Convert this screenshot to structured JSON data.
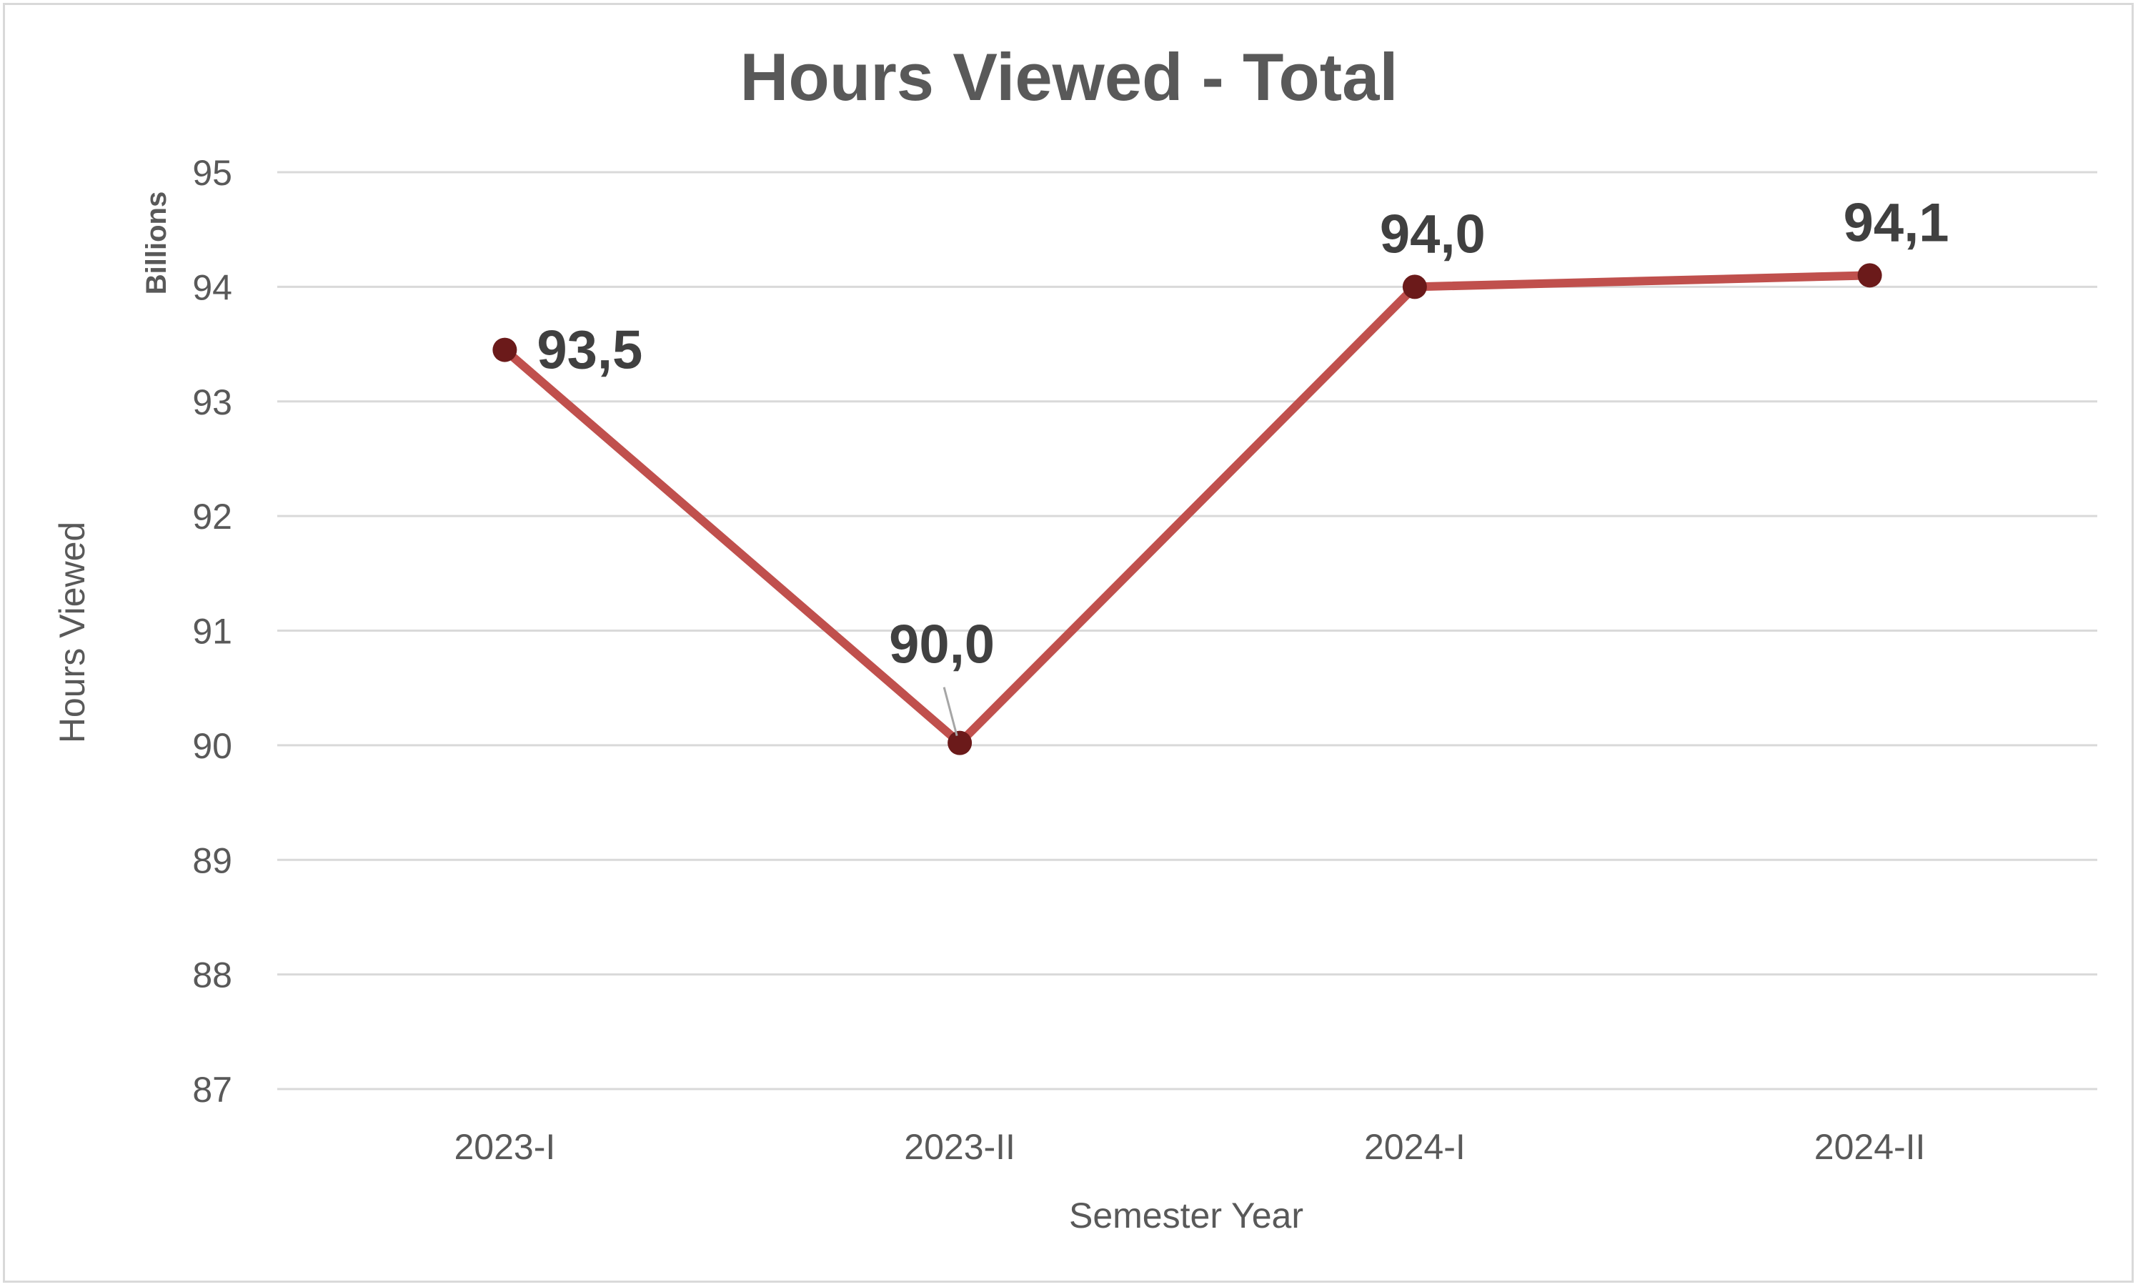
{
  "chart_data": {
    "type": "line",
    "title": "Hours Viewed - Total",
    "xlabel": "Semester Year",
    "ylabel": "Hours Viewed",
    "y_units": "Billions",
    "categories": [
      "2023-I",
      "2023-II",
      "2024-I",
      "2024-II"
    ],
    "series": [
      {
        "values": [
          93.45,
          90.02,
          94.0,
          94.1
        ],
        "data_labels": [
          "93,5",
          "90,0",
          "94,0",
          "94,1"
        ],
        "color": "#c0504d",
        "marker_color": "#6b1a1a"
      }
    ],
    "ylim": [
      87,
      95
    ],
    "yticks": [
      87,
      88,
      89,
      90,
      91,
      92,
      93,
      94,
      95
    ],
    "grid": true,
    "legend": "none"
  }
}
